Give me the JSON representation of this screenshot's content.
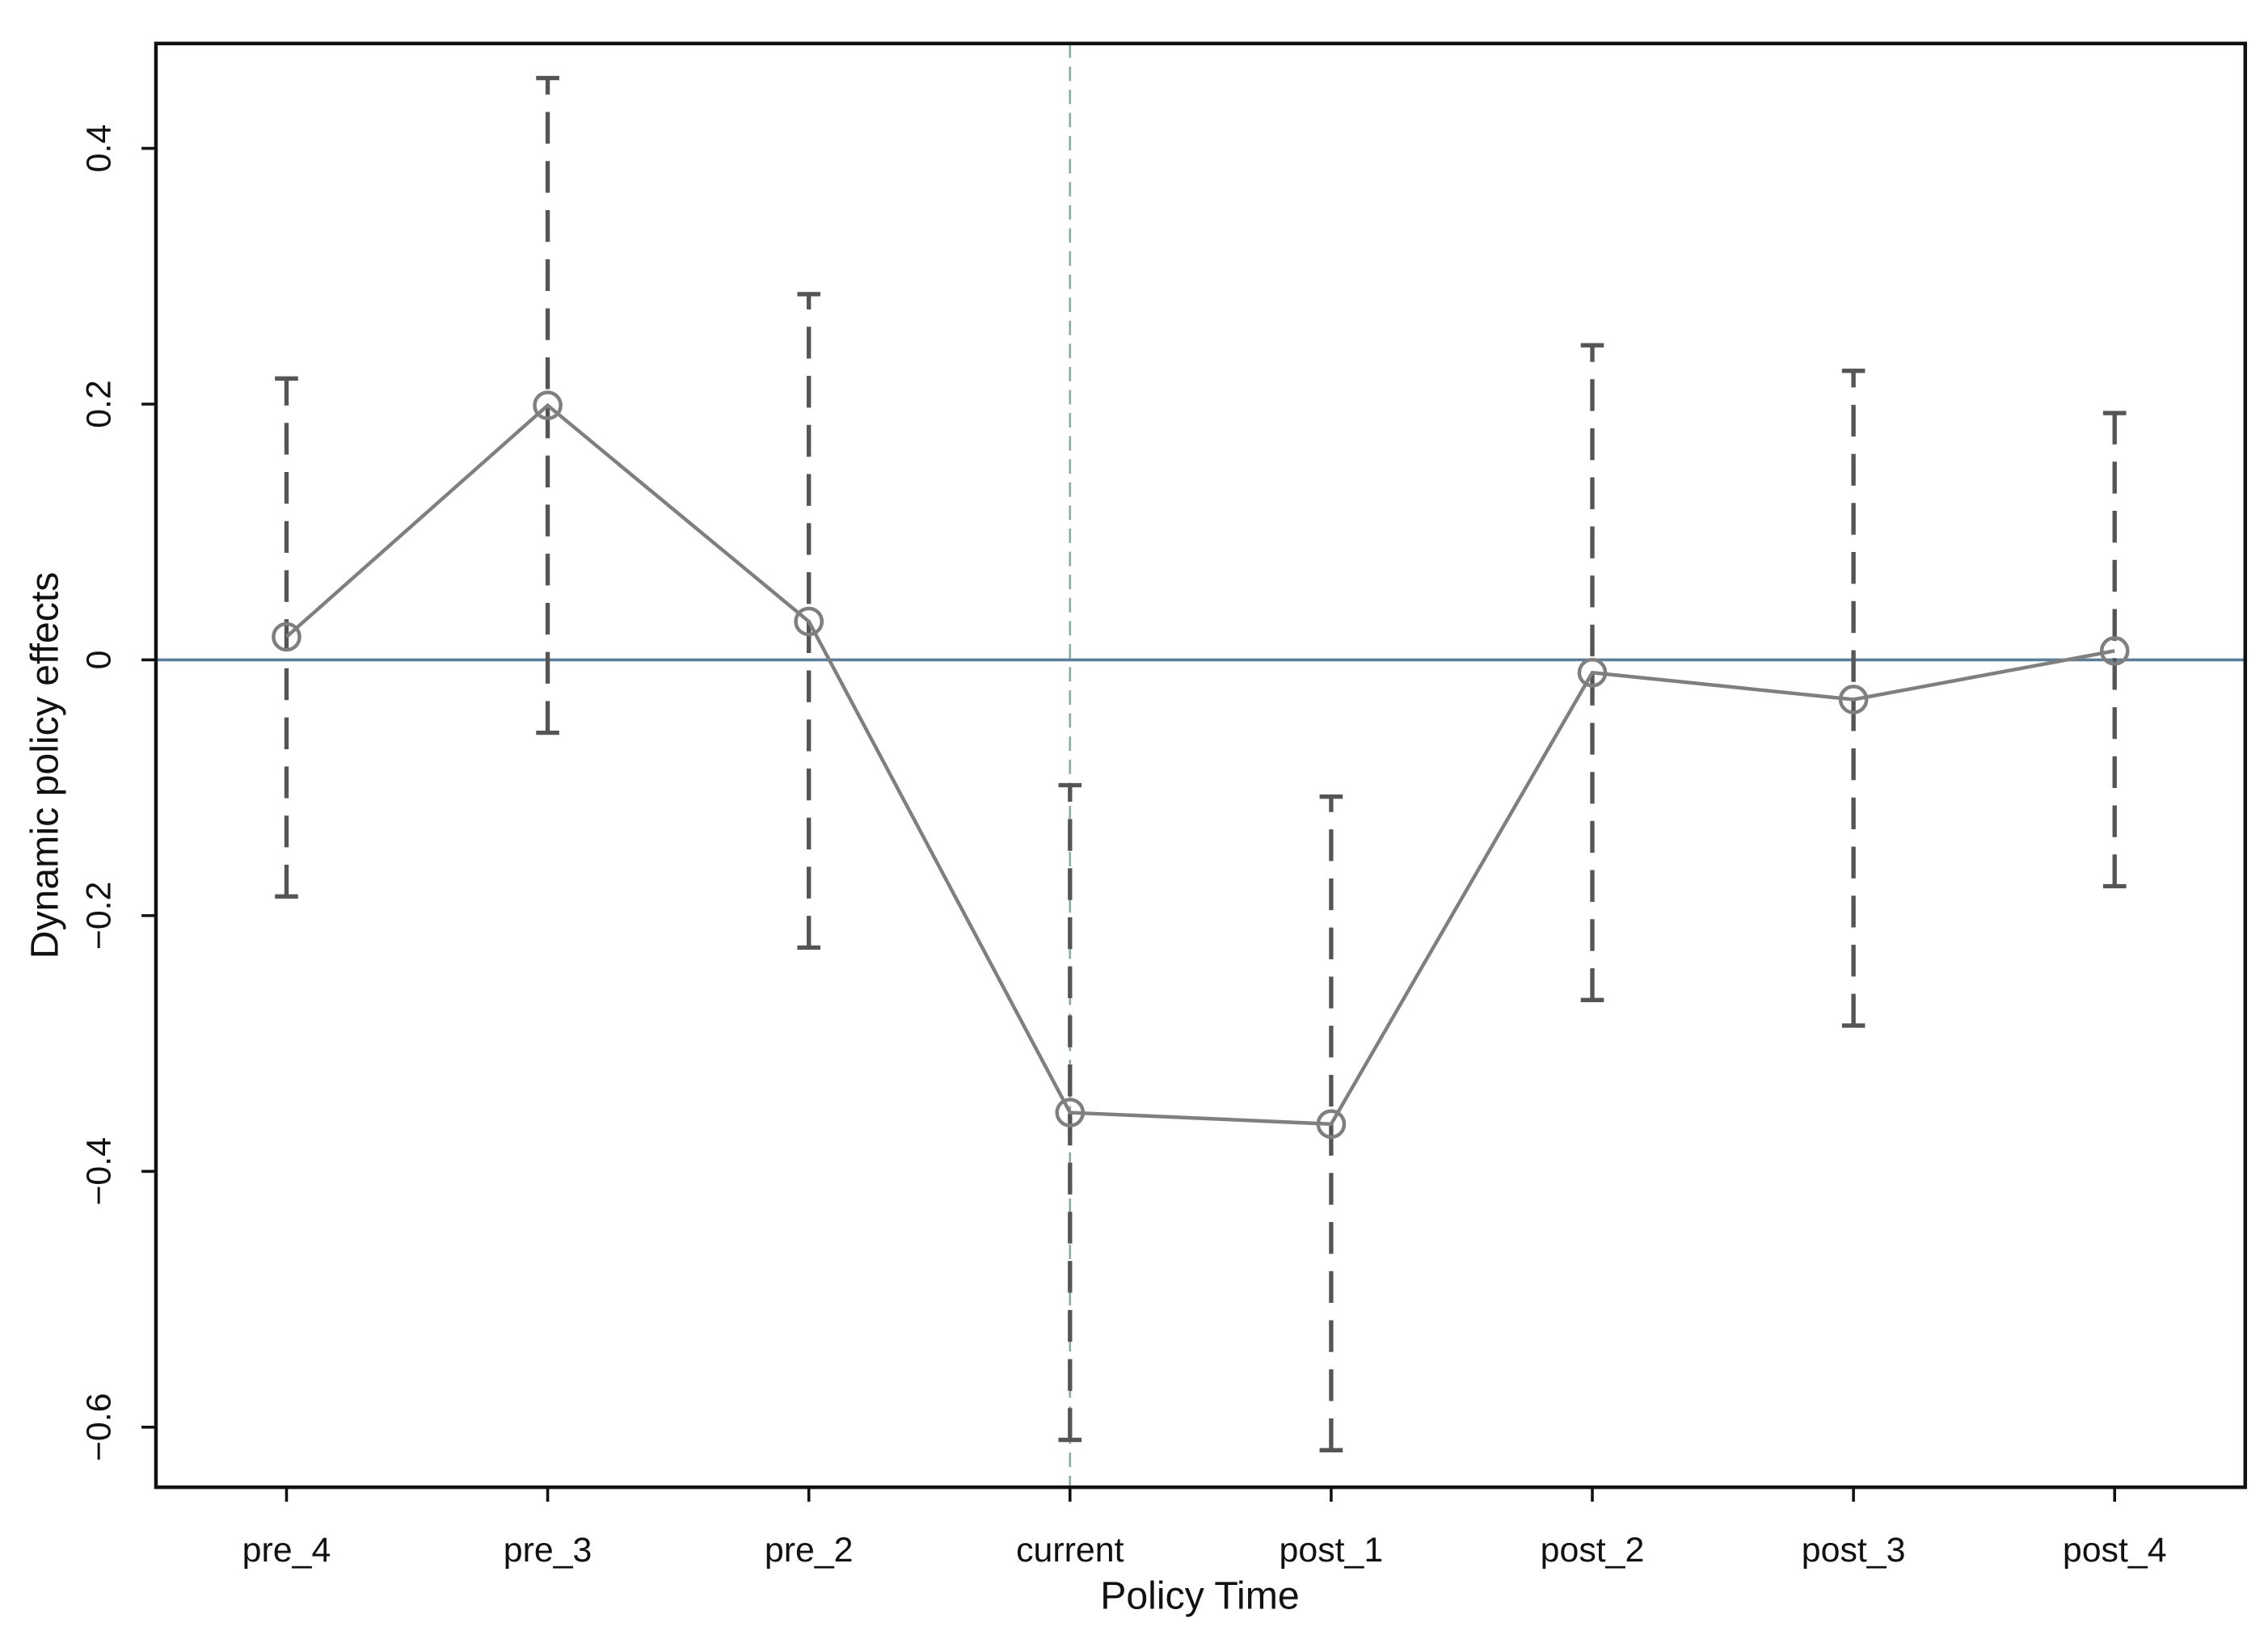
{
  "chart_data": {
    "type": "line",
    "xlabel": "Policy Time",
    "ylabel": "Dynamic policy effects",
    "categories": [
      "pre_4",
      "pre_3",
      "pre_2",
      "current",
      "post_1",
      "post_2",
      "post_3",
      "post_4"
    ],
    "series": [
      {
        "color": "#7f7f7f",
        "errorbar_color": "#555555",
        "values": [
          0.018,
          0.199,
          0.03,
          -0.354,
          -0.363,
          -0.01,
          -0.031,
          0.007
        ],
        "lower": [
          -0.185,
          -0.057,
          -0.225,
          -0.61,
          -0.618,
          -0.266,
          -0.286,
          -0.177
        ],
        "upper": [
          0.22,
          0.455,
          0.286,
          -0.098,
          -0.107,
          0.246,
          0.226,
          0.193
        ]
      }
    ],
    "ylim": [
      -0.647,
      0.482
    ],
    "yticks": [
      {
        "value": -0.6,
        "label": "−0.6"
      },
      {
        "value": -0.4,
        "label": "−0.4"
      },
      {
        "value": -0.2,
        "label": "−0.2"
      },
      0,
      0.2,
      0.4
    ],
    "reference_y": 0,
    "reference_y_color": "#5b7f9b",
    "reference_x": "current",
    "reference_x_color": "#8faaa0"
  }
}
